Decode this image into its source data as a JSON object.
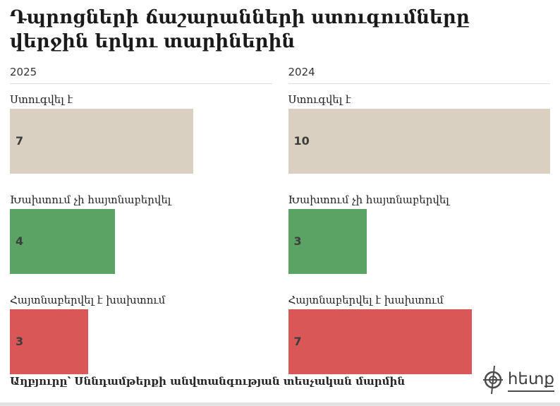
{
  "title": "Դպրոցների ճաշարանների ստուգումները վերջին երկու տարիներին",
  "columns": [
    {
      "year": "2025",
      "groups": [
        {
          "label": "Ստուգվել է",
          "value": "7",
          "color": "#d9d0c1"
        },
        {
          "label": "Խախտում չի հայտնաբերվել",
          "value": "4",
          "color": "#5ba364"
        },
        {
          "label": "Հայտնաբերվել է խախտում",
          "value": "3",
          "color": "#d95757"
        }
      ]
    },
    {
      "year": "2024",
      "groups": [
        {
          "label": "Ստուգվել է",
          "value": "10",
          "color": "#d9d0c1"
        },
        {
          "label": "Խախտում չի հայտնաբերվել",
          "value": "3",
          "color": "#5ba364"
        },
        {
          "label": "Հայտնաբերվել է խախտում",
          "value": "7",
          "color": "#d95757"
        }
      ]
    }
  ],
  "source": "Աղբյուրը՝ Սննդամթերքի անվտանգության տեսչական մարմին",
  "logo": {
    "text": "հետք"
  },
  "colors": {
    "inspected": "#d9d0c1",
    "no_violation": "#5ba364",
    "violation": "#d95757",
    "title_text": "#1a1a1a",
    "bar_number": "#3d3d3d"
  },
  "chart_data": {
    "type": "bar",
    "orientation": "horizontal",
    "title": "Դպրոցների ճաշարանների ստուգումները վերջին երկու տարիներին",
    "categories": [
      "Ստուգվել է",
      "Խախտում չի հայտնաբերվել",
      "Հայտնաբերվել է խախտում"
    ],
    "series": [
      {
        "name": "2025",
        "values": [
          7,
          4,
          3
        ]
      },
      {
        "name": "2024",
        "values": [
          10,
          3,
          7
        ]
      }
    ],
    "bar_colors": [
      "#d9d0c1",
      "#5ba364",
      "#d95757"
    ],
    "xlim": [
      0,
      10
    ],
    "grid": false,
    "legend_position": "none",
    "value_labels": "inside-left",
    "source": "Աղբյուրը՝ Սննդամթերքի անվտանգության տեսչական մարմին"
  }
}
